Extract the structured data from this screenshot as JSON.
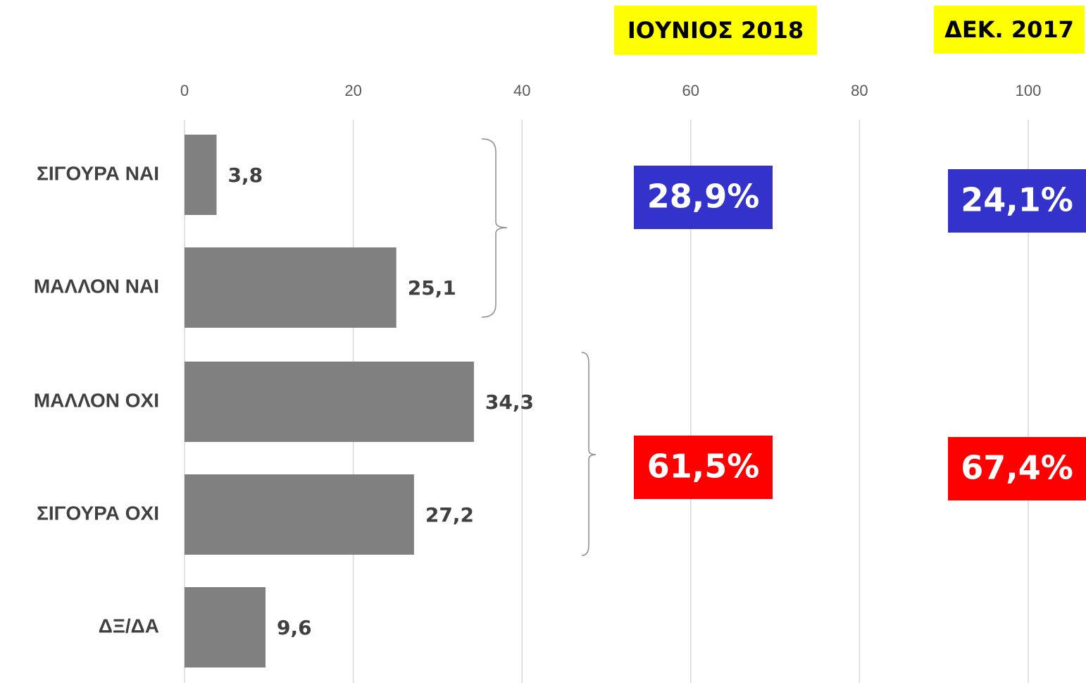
{
  "chart_data": {
    "type": "bar",
    "orientation": "horizontal",
    "categories": [
      "ΣΙΓΟΥΡΑ ΝΑΙ",
      "ΜΑΛΛΟΝ ΝΑΙ",
      "ΜΑΛΛΟΝ ΟΧΙ",
      "ΣΙΓΟΥΡΑ ΟΧΙ",
      "ΔΞ/ΔΑ"
    ],
    "values": [
      3.8,
      25.1,
      34.3,
      27.2,
      9.6
    ],
    "value_labels": [
      "3,8",
      "25,1",
      "34,3",
      "27,2",
      "9,6"
    ],
    "color": "#808080",
    "xlim": [
      0,
      100
    ],
    "xticks": [
      0,
      20,
      40,
      60,
      80,
      100
    ],
    "grid": true,
    "annotations": {
      "period_headers": [
        "ΙΟΥΝΙΟΣ 2018",
        "ΔΕΚ. 2017"
      ],
      "period_header_color": "#ffff00",
      "yes_totals": [
        "28,9%",
        "24,1%"
      ],
      "yes_color": "#3333cc",
      "no_totals": [
        "61,5%",
        "67,4%"
      ],
      "no_color": "#ff0000"
    }
  }
}
